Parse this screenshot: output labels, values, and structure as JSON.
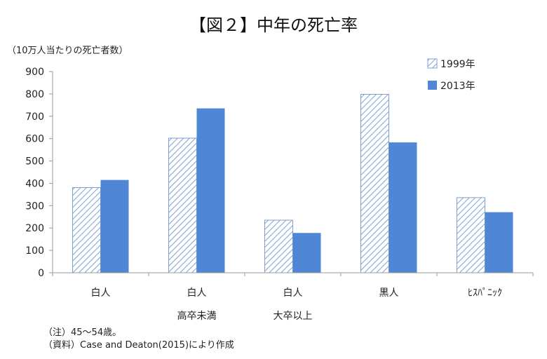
{
  "chart_data": {
    "type": "bar",
    "title": "【図２】中年の死亡率",
    "ylabel": "（10万人当たりの死亡者数）",
    "xlabel": "",
    "ylim": [
      0,
      900
    ],
    "yticks": [
      0,
      100,
      200,
      300,
      400,
      500,
      600,
      700,
      800,
      900
    ],
    "categories": [
      {
        "line1": "白人",
        "line2": ""
      },
      {
        "line1": "白人",
        "line2": "高卒未満"
      },
      {
        "line1": "白人",
        "line2": "大卒以上"
      },
      {
        "line1": "黒人",
        "line2": ""
      },
      {
        "line1": "ﾋｽﾊﾟﾆｯｸ",
        "line2": ""
      }
    ],
    "series": [
      {
        "name": "1999年",
        "style": "hatched",
        "color": "#7f9fcf",
        "values": [
          381,
          602,
          235,
          798,
          336
        ]
      },
      {
        "name": "2013年",
        "style": "solid",
        "color": "#4f86d6",
        "values": [
          415,
          735,
          178,
          583,
          271
        ]
      }
    ],
    "grid": false,
    "legend_position": "top-right"
  },
  "notes": {
    "note1": "（注）45～54歳。",
    "note2": "（資料）Case and Deaton(2015)により作成"
  }
}
